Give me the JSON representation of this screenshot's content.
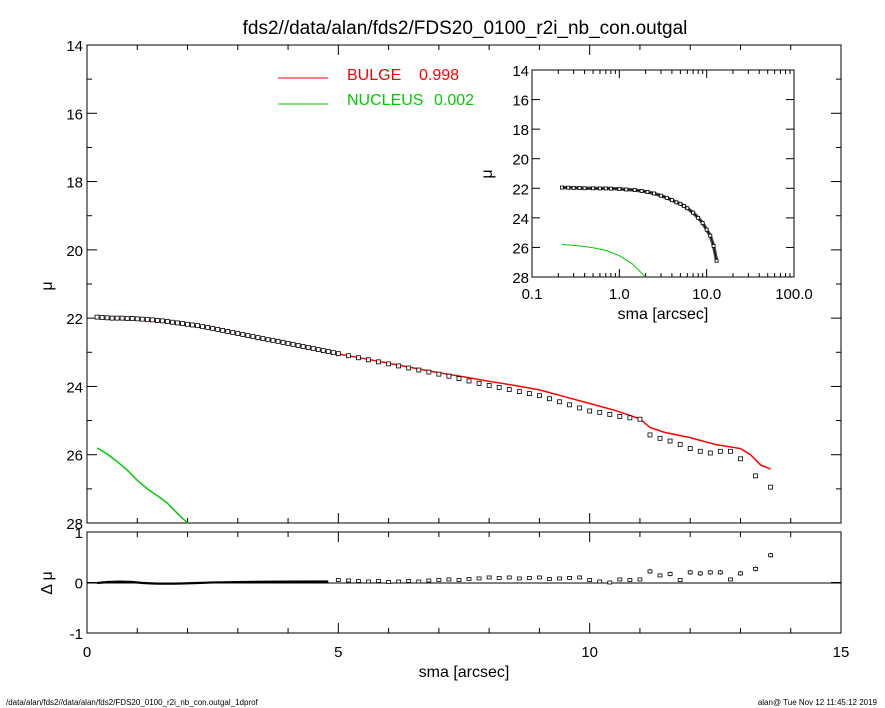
{
  "title": "fds2//data/alan/fds2/FDS20_0100_r2i_nb_con.outgal",
  "footer_left": "/data/alan/fds2//data/alan/fds2/FDS20_0100_r2i_nb_con.outgal_1dprof",
  "footer_right": "alan@  Tue Nov 12 11:45:12 2019",
  "chart_data": [
    {
      "type": "scatter",
      "panel": "main",
      "xlabel": "sma [arcsec]",
      "ylabel": "μ",
      "xlim": [
        0,
        15
      ],
      "ylim": [
        28,
        14
      ],
      "xticks": [
        0,
        5,
        10,
        15
      ],
      "yticks": [
        14,
        16,
        18,
        20,
        22,
        24,
        26,
        28
      ],
      "legend": [
        {
          "name": "BULGE",
          "value": "0.998",
          "color": "#ff0000"
        },
        {
          "name": "NUCLEUS",
          "value": "0.002",
          "color": "#00cc00"
        }
      ],
      "data": {
        "x": [
          0.2,
          0.3,
          0.4,
          0.5,
          0.6,
          0.7,
          0.8,
          0.9,
          1.0,
          1.1,
          1.2,
          1.3,
          1.4,
          1.5,
          1.6,
          1.7,
          1.8,
          1.9,
          2.0,
          2.1,
          2.2,
          2.3,
          2.4,
          2.5,
          2.6,
          2.7,
          2.8,
          2.9,
          3.0,
          3.1,
          3.2,
          3.3,
          3.4,
          3.5,
          3.6,
          3.7,
          3.8,
          3.9,
          4.0,
          4.1,
          4.2,
          4.3,
          4.4,
          4.5,
          4.6,
          4.7,
          4.8,
          4.9,
          5.0,
          5.2,
          5.4,
          5.6,
          5.8,
          6.0,
          6.2,
          6.4,
          6.6,
          6.8,
          7.0,
          7.2,
          7.4,
          7.6,
          7.8,
          8.0,
          8.2,
          8.4,
          8.6,
          8.8,
          9.0,
          9.2,
          9.4,
          9.6,
          9.8,
          10.0,
          10.2,
          10.4,
          10.6,
          10.8,
          11.0,
          11.2,
          11.4,
          11.6,
          11.8,
          12.0,
          12.2,
          12.4,
          12.6,
          12.8,
          13.0,
          13.3,
          13.6
        ],
        "mu": [
          21.97,
          21.98,
          21.99,
          22.0,
          22.0,
          22.0,
          22.01,
          22.01,
          22.02,
          22.03,
          22.04,
          22.05,
          22.07,
          22.08,
          22.1,
          22.12,
          22.14,
          22.16,
          22.18,
          22.2,
          22.22,
          22.25,
          22.27,
          22.3,
          22.33,
          22.36,
          22.39,
          22.42,
          22.45,
          22.48,
          22.51,
          22.54,
          22.57,
          22.6,
          22.63,
          22.65,
          22.68,
          22.71,
          22.74,
          22.77,
          22.8,
          22.83,
          22.86,
          22.89,
          22.92,
          22.95,
          22.98,
          23.01,
          23.04,
          23.1,
          23.16,
          23.22,
          23.28,
          23.34,
          23.4,
          23.46,
          23.52,
          23.58,
          23.64,
          23.7,
          23.77,
          23.84,
          23.91,
          23.97,
          24.03,
          24.09,
          24.15,
          24.21,
          24.27,
          24.36,
          24.45,
          24.54,
          24.63,
          24.72,
          24.76,
          24.82,
          24.88,
          24.92,
          24.96,
          25.42,
          25.52,
          25.6,
          25.7,
          25.82,
          25.9,
          25.95,
          25.9,
          25.9,
          26.12,
          26.62,
          26.95
        ]
      },
      "bulge_model": {
        "x": [
          0.2,
          0.5,
          1.0,
          1.5,
          2.0,
          2.5,
          3.0,
          3.5,
          4.0,
          4.5,
          5.0,
          5.5,
          6.0,
          6.5,
          7.0,
          7.5,
          8.0,
          8.5,
          9.0,
          9.5,
          10.0,
          10.5,
          10.8,
          11.0,
          11.2,
          11.5,
          12.0,
          12.5,
          13.0,
          13.2,
          13.4,
          13.6
        ],
        "mu": [
          22.0,
          22.02,
          22.05,
          22.1,
          22.2,
          22.3,
          22.45,
          22.6,
          22.75,
          22.9,
          23.05,
          23.18,
          23.32,
          23.46,
          23.6,
          23.72,
          23.85,
          23.97,
          24.1,
          24.3,
          24.5,
          24.7,
          24.85,
          24.95,
          25.2,
          25.35,
          25.5,
          25.7,
          25.82,
          26.0,
          26.3,
          26.42
        ]
      },
      "nucleus_model": {
        "x": [
          0.2,
          0.4,
          0.6,
          0.8,
          1.0,
          1.2,
          1.4,
          1.6,
          1.8,
          2.0
        ],
        "mu": [
          25.8,
          25.98,
          26.2,
          26.45,
          26.75,
          27.0,
          27.2,
          27.42,
          27.72,
          28.0
        ]
      }
    },
    {
      "type": "scatter",
      "panel": "residuals",
      "ylabel": "Δ μ",
      "xlim": [
        0,
        15
      ],
      "ylim": [
        -1,
        1
      ],
      "yticks": [
        -1,
        0,
        1
      ],
      "data": {
        "x": [
          5.0,
          5.2,
          5.4,
          5.6,
          5.8,
          6.0,
          6.2,
          6.4,
          6.6,
          6.8,
          7.0,
          7.2,
          7.4,
          7.6,
          7.8,
          8.0,
          8.2,
          8.4,
          8.6,
          8.8,
          9.0,
          9.2,
          9.4,
          9.6,
          9.8,
          10.0,
          10.2,
          10.4,
          10.6,
          10.8,
          11.0,
          11.2,
          11.4,
          11.6,
          11.8,
          12.0,
          12.2,
          12.4,
          12.6,
          12.8,
          13.0,
          13.3,
          13.6
        ],
        "dmu": [
          0.05,
          0.04,
          0.03,
          0.02,
          0.03,
          0.01,
          0.02,
          0.03,
          0.02,
          0.04,
          0.05,
          0.06,
          0.05,
          0.07,
          0.08,
          0.1,
          0.09,
          0.1,
          0.08,
          0.09,
          0.1,
          0.07,
          0.08,
          0.09,
          0.1,
          0.05,
          0.02,
          0.0,
          0.06,
          0.05,
          0.06,
          0.22,
          0.14,
          0.17,
          0.05,
          0.2,
          0.18,
          0.2,
          0.2,
          0.06,
          0.18,
          0.27,
          0.54
        ]
      }
    },
    {
      "type": "scatter",
      "panel": "inset",
      "xlabel": "sma [arcsec]",
      "ylabel": "μ",
      "xscale": "log",
      "xlim": [
        0.1,
        100
      ],
      "ylim": [
        28,
        14
      ],
      "xticks": [
        "0.1",
        "1.0",
        "10.0",
        "100.0"
      ],
      "yticks": [
        14,
        16,
        18,
        20,
        22,
        24,
        26,
        28
      ],
      "data": {
        "x": [
          0.22,
          0.26,
          0.3,
          0.35,
          0.4,
          0.5,
          0.6,
          0.7,
          0.8,
          1.0,
          1.2,
          1.5,
          1.8,
          2.1,
          2.5,
          3.0,
          3.5,
          4.0,
          4.5,
          5.0,
          5.5,
          6.0,
          7.0,
          8.0,
          9.0,
          10.0,
          11.0,
          12.0,
          13.0
        ],
        "mu": [
          21.95,
          21.96,
          21.97,
          21.98,
          22.0,
          22.0,
          22.01,
          22.01,
          22.02,
          22.04,
          22.08,
          22.12,
          22.18,
          22.25,
          22.35,
          22.5,
          22.65,
          22.8,
          22.95,
          23.05,
          23.2,
          23.35,
          23.65,
          24.0,
          24.35,
          24.8,
          25.2,
          25.9,
          26.9
        ]
      },
      "nucleus_model": {
        "x": [
          0.22,
          0.3,
          0.4,
          0.5,
          0.7,
          1.0,
          1.4,
          2.0
        ],
        "mu": [
          25.8,
          25.86,
          25.94,
          26.02,
          26.2,
          26.55,
          27.1,
          28.0
        ]
      }
    }
  ]
}
